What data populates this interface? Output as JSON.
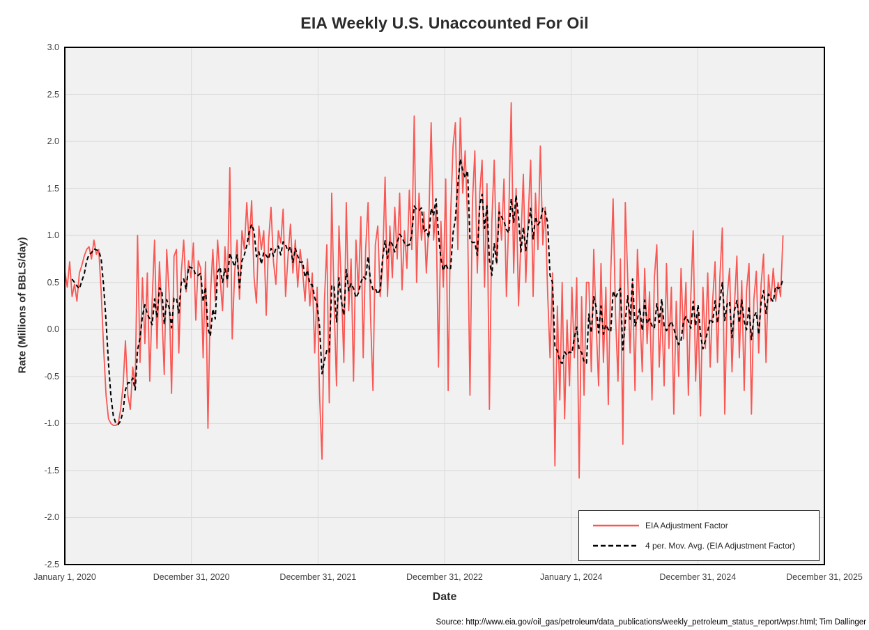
{
  "title": "EIA Weekly U.S. Unaccounted For Oil",
  "source_note": "Source: http://www.eia.gov/oil_gas/petroleum/data_publications/weekly_petroleum_status_report/wpsr.html; Tim Dallinger",
  "legend": {
    "series1_label": "EIA Adjustment Factor",
    "series2_label": "4 per. Mov. Avg. (EIA Adjustment Factor)"
  },
  "colors": {
    "series_red": "#F95753",
    "movavg_black": "#000000",
    "plot_bg": "#F1F1F1",
    "gridline": "#DADADA",
    "plot_border": "#000000",
    "tick_text": "#404040",
    "title_text": "#2B2B2B"
  },
  "chart_data": {
    "type": "line",
    "title": "EIA Weekly U.S. Unaccounted For Oil",
    "xlabel": "Date",
    "ylabel": "Rate (Millions of BBLS/day)",
    "grid": true,
    "legend_position": "bottom-right",
    "ylim": [
      -2.5,
      3.0
    ],
    "y_tick_step": 0.5,
    "y_tick_labels": [
      "3.0",
      "2.5",
      "2.0",
      "1.5",
      "1.0",
      "0.5",
      "0.0",
      "-0.5",
      "-1.0",
      "-1.5",
      "-2.0",
      "-2.5"
    ],
    "x_axis_years": [
      2020,
      2021,
      2022,
      2023,
      2024,
      2025,
      2026
    ],
    "x_tick_labels": [
      "January 1, 2020",
      "December 31, 2020",
      "December 31, 2021",
      "December 31, 2022",
      "January 1, 2024",
      "December 31, 2024",
      "December 31, 2025"
    ],
    "x_start_year": 2020,
    "point_interval_days": 7,
    "series": [
      {
        "name": "EIA Adjustment Factor",
        "style": "solid",
        "values": [
          0.62,
          0.45,
          0.72,
          0.35,
          0.48,
          0.3,
          0.6,
          0.68,
          0.78,
          0.85,
          0.88,
          0.75,
          0.95,
          0.8,
          0.85,
          0.4,
          -0.2,
          -0.7,
          -0.95,
          -1.0,
          -1.02,
          -1.02,
          -1.0,
          -0.85,
          -0.6,
          -0.12,
          -0.7,
          -0.85,
          -0.4,
          -0.62,
          1.0,
          -0.35,
          0.55,
          -0.15,
          0.6,
          -0.55,
          0.3,
          0.95,
          -0.2,
          0.72,
          0.18,
          -0.48,
          0.85,
          0.38,
          -0.68,
          0.78,
          0.85,
          -0.25,
          0.6,
          0.95,
          0.4,
          0.73,
          0.55,
          0.92,
          0.1,
          0.73,
          0.65,
          -0.3,
          0.72,
          -1.05,
          0.35,
          0.85,
          0.3,
          0.95,
          0.55,
          0.2,
          0.88,
          0.45,
          1.72,
          -0.1,
          0.6,
          0.95,
          0.32,
          1.05,
          0.85,
          1.35,
          0.9,
          1.37,
          0.55,
          0.28,
          1.1,
          0.85,
          1.05,
          0.15,
          0.95,
          1.3,
          0.72,
          0.48,
          1.05,
          0.92,
          1.28,
          0.35,
          0.78,
          1.12,
          0.6,
          0.95,
          0.45,
          0.85,
          0.62,
          0.3,
          0.75,
          0.25,
          0.6,
          -0.25,
          0.45,
          -0.7,
          -1.38,
          0.3,
          0.9,
          -0.78,
          1.45,
          0.25,
          -0.6,
          1.1,
          0.45,
          -0.35,
          1.35,
          0.2,
          0.75,
          -0.55,
          0.95,
          0.4,
          1.2,
          -0.3,
          0.85,
          1.35,
          0.15,
          -0.65,
          0.9,
          1.1,
          0.35,
          0.7,
          1.62,
          0.35,
          1.1,
          0.55,
          1.3,
          0.75,
          1.45,
          0.42,
          1.05,
          0.65,
          1.48,
          0.85,
          2.27,
          0.5,
          1.45,
          0.95,
          1.25,
          0.6,
          1.1,
          2.2,
          0.95,
          1.3,
          -0.4,
          1.15,
          0.45,
          1.6,
          -0.65,
          1.2,
          1.95,
          2.2,
          0.85,
          2.25,
          1.45,
          1.9,
          1.15,
          -0.7,
          1.35,
          1.9,
          0.6,
          1.45,
          1.8,
          0.45,
          1.55,
          -0.85,
          1.15,
          1.8,
          0.7,
          1.35,
          0.95,
          1.6,
          0.35,
          1.2,
          2.41,
          0.6,
          1.5,
          0.25,
          0.95,
          1.65,
          0.5,
          1.2,
          1.8,
          0.35,
          1.45,
          0.85,
          1.95,
          0.9,
          1.3,
          0.4,
          -0.3,
          0.6,
          -1.45,
          0.25,
          -0.75,
          0.5,
          -0.95,
          0.1,
          -0.6,
          0.45,
          -0.3,
          0.55,
          -1.58,
          0.35,
          -0.7,
          0.5,
          0.5,
          -0.45,
          0.85,
          0.05,
          -0.6,
          0.7,
          -0.35,
          0.45,
          -0.8,
          0.6,
          1.39,
          0.15,
          -0.55,
          0.75,
          -1.22,
          1.35,
          0.55,
          -0.25,
          0.5,
          -0.65,
          0.85,
          0.2,
          -0.45,
          0.65,
          -0.15,
          0.4,
          -0.75,
          0.55,
          0.9,
          -0.4,
          0.25,
          -0.6,
          0.7,
          -0.2,
          0.45,
          -0.9,
          0.3,
          -0.5,
          0.65,
          -0.1,
          0.5,
          -0.7,
          0.35,
          1.05,
          -0.55,
          0.2,
          -0.92,
          0.45,
          -0.2,
          0.6,
          -0.4,
          0.3,
          0.72,
          -0.35,
          0.55,
          1.08,
          -0.9,
          0.35,
          0.65,
          -0.45,
          0.25,
          0.78,
          -0.3,
          0.52,
          -0.65,
          0.42,
          0.7,
          -0.9,
          0.32,
          0.62,
          -0.25,
          0.48,
          0.8,
          -0.35,
          0.58,
          0.3,
          0.65,
          0.3,
          0.5,
          0.35,
          1.0
        ]
      },
      {
        "name": "4 per. Mov. Avg. (EIA Adjustment Factor)",
        "style": "dashed",
        "derived": "trailing_moving_average",
        "window": 4
      }
    ]
  }
}
